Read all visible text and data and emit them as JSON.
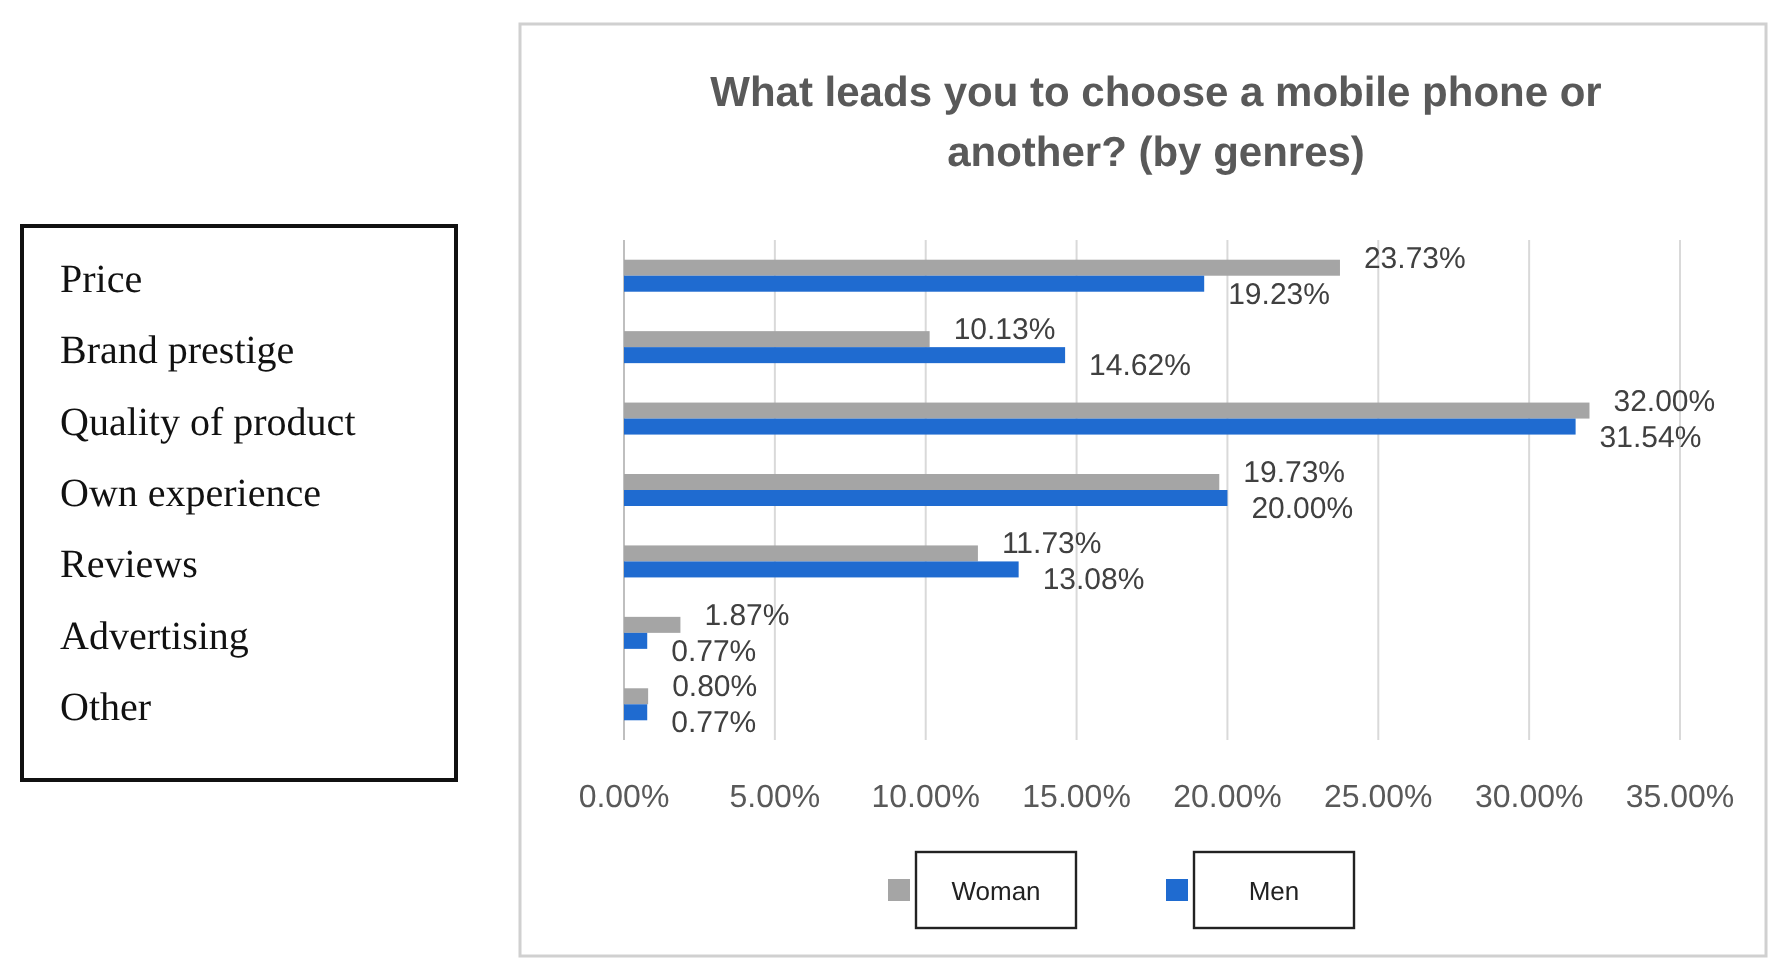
{
  "chart_data": {
    "type": "bar",
    "orientation": "horizontal",
    "title": "What leads you to choose a mobile phone or another? (by genres)",
    "categories": [
      "Price",
      "Brand prestige",
      "Quality of product",
      "Own experience",
      "Reviews",
      "Advertising",
      "Other"
    ],
    "series": [
      {
        "name": "Woman",
        "color": "#a5a5a5",
        "values": [
          23.73,
          10.13,
          32.0,
          19.73,
          11.73,
          1.87,
          0.8
        ],
        "value_labels": [
          "23.73%",
          "10.13%",
          "32.00%",
          "19.73%",
          "11.73%",
          "1.87%",
          "0.80%"
        ]
      },
      {
        "name": "Men",
        "color": "#1f6bd0",
        "values": [
          19.23,
          14.62,
          31.54,
          20.0,
          13.08,
          0.77,
          0.77
        ],
        "value_labels": [
          "19.23%",
          "14.62%",
          "31.54%",
          "20.00%",
          "13.08%",
          "0.77%",
          "0.77%"
        ]
      }
    ],
    "xlim": [
      0,
      35
    ],
    "xticks": [
      {
        "value": 0,
        "label": "0.00%"
      },
      {
        "value": 5,
        "label": "5.00%"
      },
      {
        "value": 10,
        "label": "10.00%"
      },
      {
        "value": 15,
        "label": "15.00%"
      },
      {
        "value": 20,
        "label": "20.00%"
      },
      {
        "value": 25,
        "label": "25.00%"
      },
      {
        "value": 30,
        "label": "30.00%"
      },
      {
        "value": 35,
        "label": "35.00%"
      }
    ],
    "grid": "x",
    "legend": "bottom"
  }
}
